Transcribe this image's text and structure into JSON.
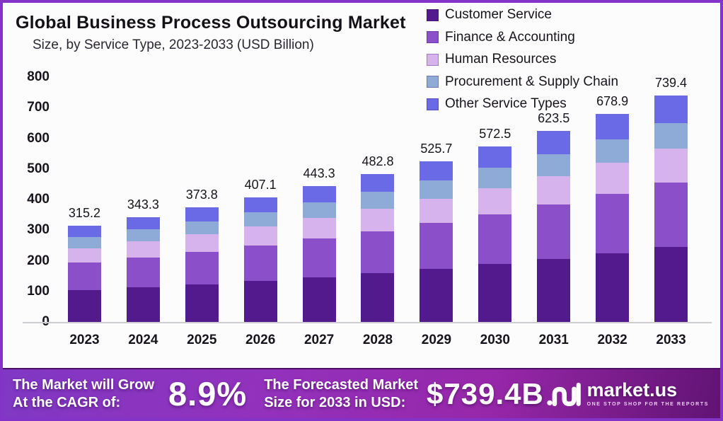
{
  "header": {
    "title": "Global Business Process Outsourcing Market",
    "subtitle": "Size, by Service Type, 2023-2033 (USD Billion)"
  },
  "chart_data": {
    "type": "bar",
    "stacked": true,
    "title": "Global Business Process Outsourcing Market",
    "subtitle": "Size, by Service Type, 2023-2033 (USD Billion)",
    "unit": "USD Billion",
    "categories": [
      "2023",
      "2024",
      "2025",
      "2026",
      "2027",
      "2028",
      "2029",
      "2030",
      "2031",
      "2032",
      "2033"
    ],
    "totals": [
      315.2,
      343.3,
      373.8,
      407.1,
      443.3,
      482.8,
      525.7,
      572.5,
      623.5,
      678.9,
      739.4
    ],
    "series": [
      {
        "name": "Customer Service",
        "color": "#521a8c",
        "values": [
          104.0,
          113.3,
          123.4,
          134.3,
          146.3,
          159.3,
          173.5,
          188.9,
          205.8,
          224.0,
          244.0
        ]
      },
      {
        "name": "Finance & Accounting",
        "color": "#8b4fc9",
        "values": [
          89.8,
          97.8,
          106.5,
          116.0,
          126.3,
          137.6,
          149.8,
          163.2,
          177.7,
          193.5,
          210.7
        ]
      },
      {
        "name": "Human Resources",
        "color": "#d6b3ec",
        "values": [
          47.3,
          51.5,
          56.1,
          61.1,
          66.5,
          72.4,
          78.9,
          85.9,
          93.5,
          101.8,
          110.9
        ]
      },
      {
        "name": "Procurement & Supply Chain",
        "color": "#8dabd6",
        "values": [
          36.2,
          39.5,
          43.0,
          46.8,
          51.0,
          55.5,
          60.5,
          65.8,
          71.7,
          78.1,
          85.0
        ]
      },
      {
        "name": "Other Service Types",
        "color": "#6b6ae6",
        "values": [
          37.9,
          41.2,
          44.8,
          48.9,
          53.2,
          58.0,
          63.0,
          68.7,
          74.8,
          81.5,
          88.8
        ]
      }
    ],
    "ylim": [
      0,
      800
    ],
    "yticks": [
      0,
      100,
      200,
      300,
      400,
      500,
      600,
      700,
      800
    ],
    "grid": false,
    "legend_position": "top-right",
    "bar_total_labels": true
  },
  "banner": {
    "grow_line1": "The Market will Grow",
    "grow_line2": "At the CAGR of:",
    "cagr_value": "8.9%",
    "forecast_line1": "The Forecasted Market",
    "forecast_line2": "Size for 2033 in USD:",
    "forecast_value": "$739.4B",
    "brand_name": "market.us",
    "brand_tagline": "ONE STOP SHOP FOR THE REPORTS"
  },
  "colors": {
    "frame_border": "#8433c9",
    "banner_gradient": [
      "#8038c4",
      "#9331bc",
      "#9727a9",
      "#611373"
    ],
    "axis_line": "#cfccd4",
    "text": "#17141c"
  }
}
